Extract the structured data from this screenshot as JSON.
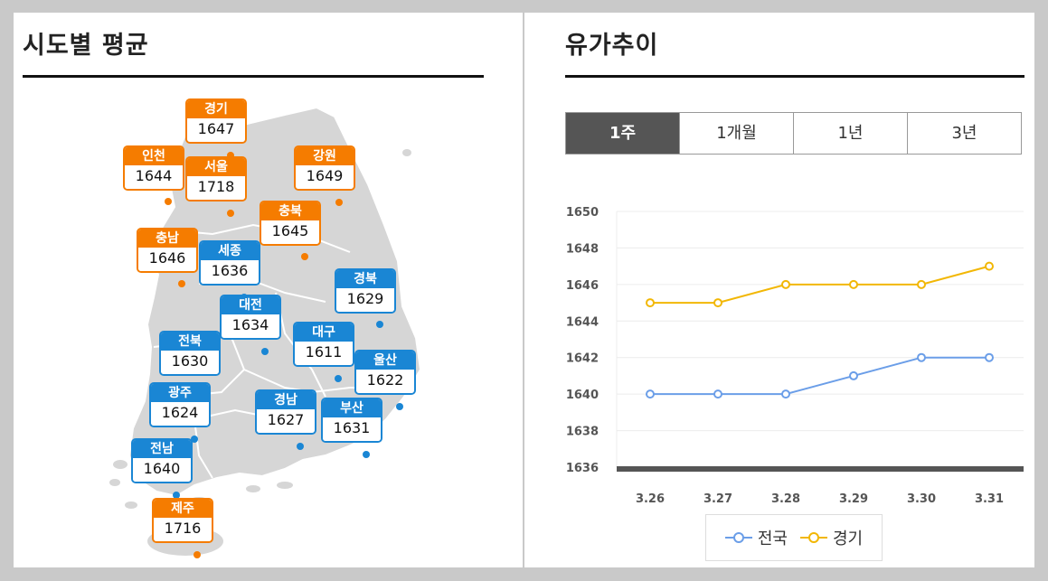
{
  "left": {
    "title": "시도별 평균",
    "regions": [
      {
        "name": "경기",
        "price": "1647",
        "color": "orange"
      },
      {
        "name": "인천",
        "price": "1644",
        "color": "orange"
      },
      {
        "name": "서울",
        "price": "1718",
        "color": "orange"
      },
      {
        "name": "강원",
        "price": "1649",
        "color": "orange"
      },
      {
        "name": "충북",
        "price": "1645",
        "color": "orange"
      },
      {
        "name": "충남",
        "price": "1646",
        "color": "orange"
      },
      {
        "name": "세종",
        "price": "1636",
        "color": "blue"
      },
      {
        "name": "경북",
        "price": "1629",
        "color": "blue"
      },
      {
        "name": "대전",
        "price": "1634",
        "color": "blue"
      },
      {
        "name": "대구",
        "price": "1611",
        "color": "blue"
      },
      {
        "name": "전북",
        "price": "1630",
        "color": "blue"
      },
      {
        "name": "울산",
        "price": "1622",
        "color": "blue"
      },
      {
        "name": "광주",
        "price": "1624",
        "color": "blue"
      },
      {
        "name": "경남",
        "price": "1627",
        "color": "blue"
      },
      {
        "name": "부산",
        "price": "1631",
        "color": "blue"
      },
      {
        "name": "전남",
        "price": "1640",
        "color": "blue"
      },
      {
        "name": "제주",
        "price": "1716",
        "color": "orange"
      }
    ]
  },
  "right": {
    "title": "유가추이",
    "tabs": [
      "1주",
      "1개월",
      "1년",
      "3년"
    ],
    "active_tab": "1주"
  },
  "colors": {
    "orange": "#f57c00",
    "blue": "#1a86d4",
    "series_national": "#6b9ee8",
    "series_gyeonggi": "#f2b705"
  },
  "chart_data": {
    "type": "line",
    "categories": [
      "3.26",
      "3.27",
      "3.28",
      "3.29",
      "3.30",
      "3.31"
    ],
    "series": [
      {
        "name": "전국",
        "values": [
          1640,
          1640,
          1640,
          1641,
          1642,
          1642
        ]
      },
      {
        "name": "경기",
        "values": [
          1645,
          1645,
          1646,
          1646,
          1646,
          1647
        ]
      }
    ],
    "ylim": [
      1636,
      1650
    ],
    "yticks": [
      "1650",
      "1648",
      "1646",
      "1644",
      "1642",
      "1640",
      "1638",
      "1636"
    ],
    "grid": true,
    "legend": "bottom"
  }
}
